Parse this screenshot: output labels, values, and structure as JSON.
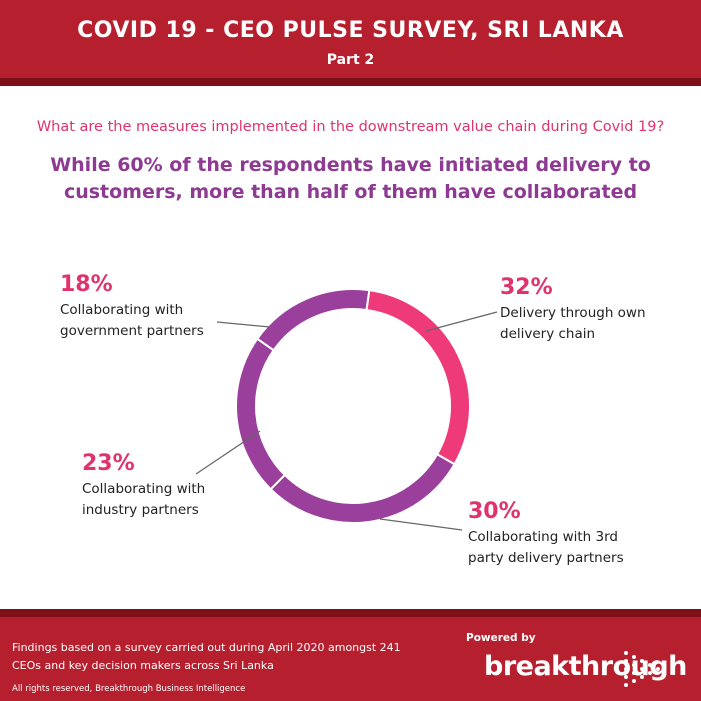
{
  "header": {
    "title": "COVID 19 - CEO PULSE SURVEY, SRI LANKA",
    "subtitle": "Part 2"
  },
  "question": "What are the measures implemented in the downstream value chain during Covid 19?",
  "headline": "While 60% of the respondents have initiated delivery to customers, more than half of them have collaborated",
  "chart_data": {
    "type": "pie",
    "style": "donut",
    "categories": [
      "Delivery through own delivery chain",
      "Collaborating with 3rd party delivery partners",
      "Collaborating with industry partners",
      "Collaborating with government partners"
    ],
    "values": [
      32,
      30,
      23,
      18
    ],
    "labels": [
      "32%",
      "30%",
      "23%",
      "18%"
    ],
    "colors": [
      "#ef3a7a",
      "#9b3f9c",
      "#9b3f9c",
      "#9b3f9c"
    ]
  },
  "labels": [
    {
      "pct": "32%",
      "text": "Delivery through own\ndelivery chain"
    },
    {
      "pct": "30%",
      "text": "Collaborating with 3rd\nparty delivery partners"
    },
    {
      "pct": "23%",
      "text": "Collaborating with\nindustry partners"
    },
    {
      "pct": "18%",
      "text": "Collaborating with\ngovernment partners"
    }
  ],
  "footer": {
    "note": "Findings based on a survey carried out during April 2020 amongst 241\nCEOs and key decision makers across Sri Lanka",
    "rights": "All rights reserved, Breakthrough Business Intelligence",
    "powered_by": "Powered by",
    "logo_text": "breakthrough"
  }
}
